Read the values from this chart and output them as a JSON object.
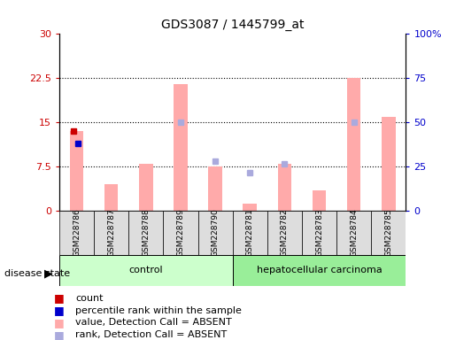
{
  "title": "GDS3087 / 1445799_at",
  "samples": [
    "GSM228786",
    "GSM228787",
    "GSM228788",
    "GSM228789",
    "GSM228790",
    "GSM228781",
    "GSM228782",
    "GSM228783",
    "GSM228784",
    "GSM228785"
  ],
  "value_absent": [
    13.5,
    4.5,
    8.0,
    21.5,
    7.5,
    1.2,
    8.0,
    3.5,
    22.5,
    16.0
  ],
  "rank_absent": [
    null,
    null,
    null,
    15.0,
    8.5,
    6.5,
    8.0,
    null,
    15.0,
    null
  ],
  "count_val": [
    13.5
  ],
  "count_idx": [
    0
  ],
  "percentile_val": [
    11.5
  ],
  "percentile_idx": [
    0
  ],
  "ylim_left": [
    0,
    30
  ],
  "ylim_right": [
    0,
    100
  ],
  "yticks_left": [
    0,
    7.5,
    15,
    22.5,
    30
  ],
  "ytick_labels_left": [
    "0",
    "7.5",
    "15",
    "22.5",
    "30"
  ],
  "yticks_right": [
    0,
    25,
    50,
    75,
    100
  ],
  "ytick_labels_right": [
    "0",
    "25",
    "50",
    "75",
    "100%"
  ],
  "grid_lines": [
    7.5,
    15,
    22.5
  ],
  "left_axis_color": "#cc0000",
  "right_axis_color": "#0000cc",
  "bar_absent_color": "#ffaaaa",
  "rank_absent_color": "#aaaadd",
  "count_color": "#cc0000",
  "percentile_color": "#0000cc",
  "control_group_color": "#ccffcc",
  "carcinoma_group_color": "#99ee99",
  "box_color": "#dddddd"
}
